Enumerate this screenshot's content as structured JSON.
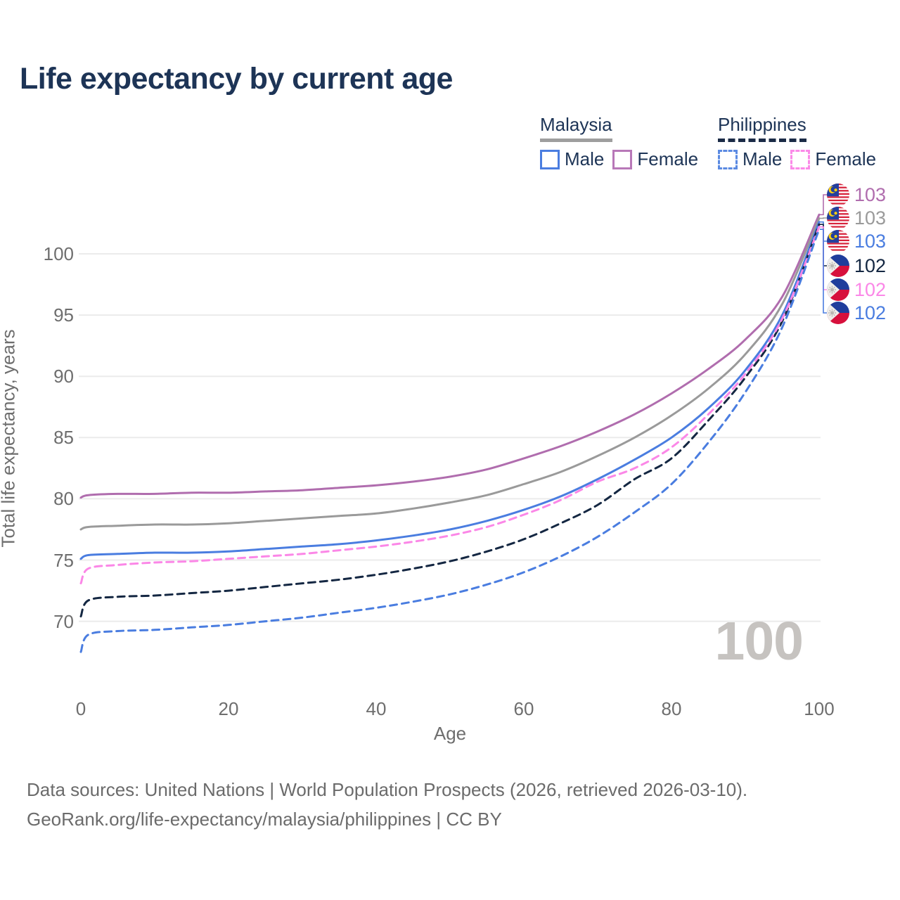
{
  "title": "Life expectancy by current age",
  "legend": {
    "malaysia": {
      "name": "Malaysia",
      "male_label": "Male",
      "female_label": "Female",
      "male_color": "#4a7de0",
      "female_color": "#b878b8",
      "header_line_color": "#9e9e9e",
      "header_line_style": "solid"
    },
    "philippines": {
      "name": "Philippines",
      "male_label": "Male",
      "female_label": "Female",
      "male_color": "#5b8ae2",
      "female_color": "#fb8ae8",
      "header_line_color": "#1b2b47",
      "header_line_style": "dashed"
    }
  },
  "watermark": "100",
  "footer": {
    "line1": "Data sources: United Nations | World Population Prospects (2026, retrieved 2026-03-10).",
    "line2": "GeoRank.org/life-expectancy/malaysia/philippines | CC BY"
  },
  "chart_data": {
    "type": "line",
    "title": "Life expectancy by current age",
    "xlabel": "Age",
    "ylabel": "Total life expectancy, years",
    "xlim": [
      0,
      100
    ],
    "ylim": [
      67,
      104
    ],
    "x_ticks": [
      0,
      20,
      40,
      60,
      80,
      100
    ],
    "y_ticks": [
      100,
      95,
      90,
      85,
      80,
      75,
      70
    ],
    "grid": "horizontal",
    "legend_position": "top-right",
    "x": [
      0,
      1,
      5,
      10,
      15,
      20,
      25,
      30,
      35,
      40,
      45,
      50,
      55,
      60,
      65,
      70,
      75,
      80,
      85,
      90,
      95,
      100
    ],
    "series": [
      {
        "name": "Malaysia Female",
        "country": "malaysia",
        "sex": "female",
        "color": "#b06dae",
        "dash": false,
        "end_label": "103",
        "end_label_color": "#b06dae",
        "values": [
          80.1,
          80.3,
          80.4,
          80.4,
          80.5,
          80.5,
          80.6,
          80.7,
          80.9,
          81.1,
          81.4,
          81.8,
          82.4,
          83.3,
          84.3,
          85.5,
          86.9,
          88.6,
          90.6,
          93.0,
          96.5,
          103.2
        ]
      },
      {
        "name": "Malaysia (combined)",
        "country": "malaysia",
        "sex": "both",
        "color": "#9a9a9a",
        "dash": false,
        "end_label": "103",
        "end_label_color": "#9a9a9a",
        "values": [
          77.5,
          77.7,
          77.8,
          77.9,
          77.9,
          78.0,
          78.2,
          78.4,
          78.6,
          78.8,
          79.2,
          79.7,
          80.3,
          81.2,
          82.2,
          83.5,
          85.0,
          86.8,
          89.0,
          91.8,
          95.9,
          102.9
        ]
      },
      {
        "name": "Malaysia Male",
        "country": "malaysia",
        "sex": "male",
        "color": "#4a7de0",
        "dash": false,
        "end_label": "103",
        "end_label_color": "#4a7de0",
        "values": [
          75.1,
          75.4,
          75.5,
          75.6,
          75.6,
          75.7,
          75.9,
          76.1,
          76.3,
          76.6,
          77.0,
          77.5,
          78.2,
          79.1,
          80.2,
          81.6,
          83.2,
          85.0,
          87.4,
          90.5,
          95.0,
          102.6
        ]
      },
      {
        "name": "Philippines (combined)",
        "country": "philippines",
        "sex": "both",
        "color": "#142742",
        "dash": true,
        "end_label": "102",
        "end_label_color": "#142742",
        "values": [
          70.4,
          71.7,
          72.0,
          72.1,
          72.3,
          72.5,
          72.8,
          73.1,
          73.4,
          73.8,
          74.3,
          74.9,
          75.7,
          76.7,
          78.0,
          79.5,
          81.6,
          83.3,
          86.4,
          89.9,
          94.5,
          102.4
        ]
      },
      {
        "name": "Philippines Female",
        "country": "philippines",
        "sex": "female",
        "color": "#fb87e7",
        "dash": true,
        "end_label": "102",
        "end_label_color": "#fb87e7",
        "values": [
          73.1,
          74.3,
          74.6,
          74.8,
          74.9,
          75.1,
          75.3,
          75.5,
          75.8,
          76.1,
          76.5,
          77.0,
          77.7,
          78.7,
          79.9,
          81.4,
          82.5,
          84.2,
          86.9,
          90.2,
          94.7,
          102.2
        ]
      },
      {
        "name": "Philippines Male",
        "country": "philippines",
        "sex": "male",
        "color": "#4a7de0",
        "dash": true,
        "end_label": "102",
        "end_label_color": "#4a7de0",
        "values": [
          67.5,
          68.9,
          69.2,
          69.3,
          69.5,
          69.7,
          70.0,
          70.3,
          70.7,
          71.1,
          71.6,
          72.2,
          73.0,
          74.0,
          75.3,
          76.9,
          78.9,
          81.2,
          84.6,
          88.7,
          94.0,
          102.0
        ]
      }
    ]
  }
}
